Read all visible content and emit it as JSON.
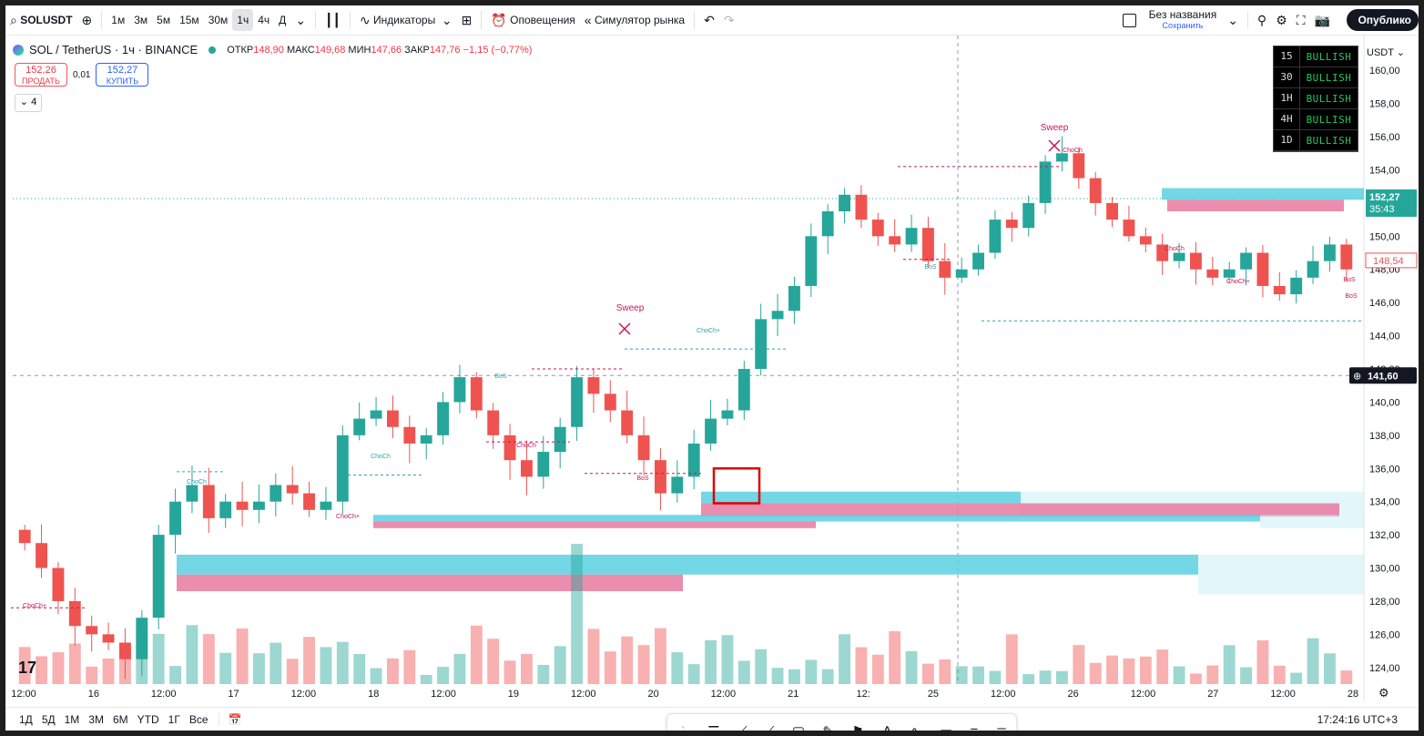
{
  "toolbar": {
    "symbol": "SOLUSDT",
    "timeframes": [
      "1м",
      "3м",
      "5м",
      "15м",
      "30м",
      "1ч",
      "4ч",
      "Д"
    ],
    "active_timeframe": "1ч",
    "indicators_label": "Индикаторы",
    "alerts_label": "Оповещения",
    "replay_label": "Симулятор рынка",
    "layout_name": "Без названия",
    "layout_status": "Сохранить",
    "publish_label": "Опублико"
  },
  "legend": {
    "title": "SOL / TetherUS · 1ч · BINANCE",
    "open_label": "ОТКР",
    "open": "148,90",
    "high_label": "МАКС",
    "high": "149,68",
    "low_label": "МИН",
    "low": "147,66",
    "close_label": "ЗАКР",
    "close": "147,76",
    "change": "−1,15 (−0,77%)"
  },
  "trade": {
    "sell_price": "152,26",
    "sell_label": "ПРОДАТЬ",
    "spread": "0,01",
    "buy_price": "152,27",
    "buy_label": "КУПИТЬ",
    "indicators_count": "4"
  },
  "trend_table": [
    {
      "tf": "15",
      "value": "BULLISH"
    },
    {
      "tf": "30",
      "value": "BULLISH"
    },
    {
      "tf": "1H",
      "value": "BULLISH"
    },
    {
      "tf": "4H",
      "value": "BULLISH"
    },
    {
      "tf": "1D",
      "value": "BULLISH"
    }
  ],
  "price_axis": {
    "currency": "USDT",
    "ticks": [
      "160,00",
      "158,00",
      "156,00",
      "154,00",
      "152,00",
      "150,00",
      "148,00",
      "146,00",
      "144,00",
      "142,00",
      "140,00",
      "138,00",
      "136,00",
      "134,00",
      "132,00",
      "130,00",
      "128,00",
      "126,00",
      "124,00"
    ],
    "last_price": "152,27",
    "countdown": "35:43",
    "close_marker": "148,54",
    "crosshair_price": "141,60"
  },
  "time_axis": [
    "12:00",
    "16",
    "12:00",
    "17",
    "12:00",
    "18",
    "12:00",
    "19",
    "12:00",
    "20",
    "12:00",
    "21",
    "12:",
    "25",
    "12:00",
    "26",
    "12:00",
    "27",
    "12:00",
    "28"
  ],
  "annotations": [
    "ChoCh+",
    "ChoCh",
    "ChoCh",
    "ChoCh+",
    "BoS",
    "ChoCh",
    "BoS",
    "Sweep",
    "ChoCh+",
    "ChoCh",
    "BoS",
    "Sweep",
    "ChoCh",
    "ChoCh+",
    "BoS",
    "BoS"
  ],
  "chart_data": {
    "type": "candlestick",
    "symbol": "SOL / TetherUS",
    "interval": "1ч",
    "ylim": [
      123,
      161
    ],
    "up_color": "#26a69a",
    "down_color": "#ef5350",
    "approx_closes": [
      131.5,
      130,
      128,
      126.5,
      126,
      125.5,
      124.5,
      127,
      132,
      134,
      135,
      133,
      134,
      133.5,
      134,
      135,
      134.5,
      133.5,
      134,
      138,
      139,
      139.5,
      138.5,
      137.5,
      138,
      140,
      141.5,
      139.5,
      138,
      136.5,
      135.5,
      137,
      138.5,
      141.5,
      140.5,
      139.5,
      138,
      136.5,
      134.5,
      135.5,
      137.5,
      139,
      139.5,
      142,
      145,
      145.5,
      147,
      150,
      151.5,
      152.5,
      151,
      150,
      149.5,
      150.5,
      148.5,
      147.5,
      148,
      149,
      151,
      150.5,
      152,
      154.5,
      155,
      153.5,
      152,
      151,
      150,
      149.5,
      148.5,
      149,
      148,
      147.5,
      148,
      149,
      147,
      146.5,
      147.5,
      148.5,
      149.5,
      148
    ]
  },
  "zones": [
    {
      "type": "demand",
      "top": 130.8,
      "bottom": 129.6
    },
    {
      "type": "supply",
      "top": 129.6,
      "bottom": 128.6
    },
    {
      "type": "demand",
      "top": 134.6,
      "bottom": 133.9
    },
    {
      "type": "supply",
      "top": 133.9,
      "bottom": 133.1
    },
    {
      "type": "demand",
      "top": 133.2,
      "bottom": 132.8
    },
    {
      "type": "supply",
      "top": 132.8,
      "bottom": 132.4
    },
    {
      "type": "demand",
      "top": 152.9,
      "bottom": 152.2
    },
    {
      "type": "supply",
      "top": 152.2,
      "bottom": 151.5
    }
  ],
  "bottom": {
    "ranges": [
      "1Д",
      "5Д",
      "1М",
      "3М",
      "6М",
      "YTD",
      "1Г",
      "Все"
    ],
    "clock": "17:24:16 UTC+3"
  }
}
